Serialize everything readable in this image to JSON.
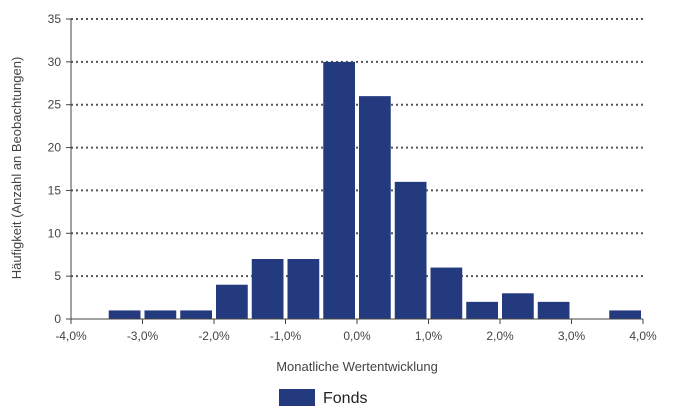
{
  "chart_data": {
    "type": "bar",
    "title": "",
    "xlabel": "Monatliche Wertentwicklung",
    "ylabel": "Häufigkeit (Anzahl an Beobachtungen)",
    "ylim": [
      0,
      35
    ],
    "yticks": [
      0,
      5,
      10,
      15,
      20,
      25,
      30,
      35
    ],
    "xlim": [
      -4.0,
      4.0
    ],
    "xticks": [
      -4.0,
      -3.0,
      -2.0,
      -1.0,
      0.0,
      1.0,
      2.0,
      3.0,
      4.0
    ],
    "xtick_labels": [
      "-4,0%",
      "-3,0%",
      "-2,0%",
      "-1,0%",
      "0,0%",
      "1,0%",
      "2,0%",
      "3,0%",
      "4,0%"
    ],
    "bin_width": 0.5,
    "grid": "horizontal-dotted",
    "legend_position": "bottom-center",
    "series": [
      {
        "name": "Fonds",
        "color": "#243a7f",
        "bin_centers": [
          -3.25,
          -2.75,
          -2.25,
          -1.75,
          -1.25,
          -0.75,
          -0.25,
          0.25,
          0.75,
          1.25,
          1.75,
          2.25,
          2.75,
          3.25,
          3.75
        ],
        "values": [
          1,
          1,
          1,
          4,
          7,
          7,
          30,
          26,
          16,
          6,
          2,
          3,
          2,
          0,
          1
        ]
      }
    ]
  }
}
